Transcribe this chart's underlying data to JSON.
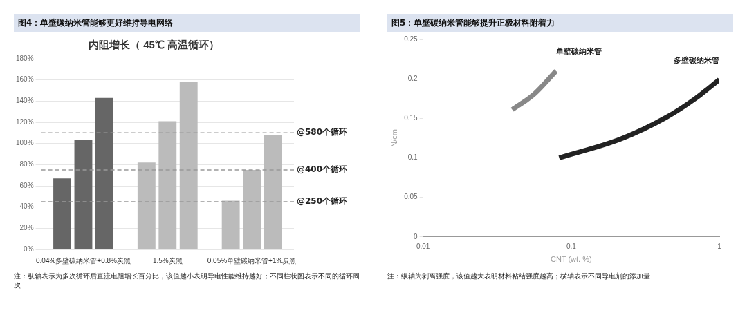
{
  "chart_data": [
    {
      "type": "bar",
      "title": "图4：单壁碳纳米管能够更好维持导电网络",
      "subtitle": "内阻增长（ 45℃ 高温循环）",
      "categories": [
        "0.04%多壁碳纳米管+0.8%炭黑",
        "1.5%炭黑",
        "0.05%单壁碳纳米管+1%炭黑"
      ],
      "series": [
        {
          "colors": [
            "#666666",
            "#bbbbbb",
            "#bbbbbb"
          ],
          "values": [
            67,
            82,
            46
          ]
        },
        {
          "colors": [
            "#666666",
            "#bbbbbb",
            "#bbbbbb"
          ],
          "values": [
            103,
            121,
            75
          ]
        },
        {
          "colors": [
            "#666666",
            "#bbbbbb",
            "#bbbbbb"
          ],
          "values": [
            143,
            158,
            108
          ]
        }
      ],
      "ylim": [
        0,
        180
      ],
      "yticks": [
        {
          "value": 0,
          "label": "0%"
        },
        {
          "value": 20,
          "label": "20%"
        },
        {
          "value": 40,
          "label": "40%"
        },
        {
          "value": 60,
          "label": "60%"
        },
        {
          "value": 80,
          "label": "80%"
        },
        {
          "value": 100,
          "label": "100%"
        },
        {
          "value": 120,
          "label": "120%"
        },
        {
          "value": 140,
          "label": "140%"
        },
        {
          "value": 160,
          "label": "160%"
        },
        {
          "value": 180,
          "label": "180%"
        }
      ],
      "grid": "y",
      "legend": false,
      "ref_lines": [
        {
          "axis": "y",
          "value": 45,
          "label": "@250个循环",
          "color": "#999999",
          "line_style": "dashed"
        },
        {
          "axis": "y",
          "value": 75,
          "label": "@400个循环",
          "color": "#999999",
          "line_style": "dashed"
        },
        {
          "axis": "y",
          "value": 110,
          "label": "@580个循环",
          "color": "#999999",
          "line_style": "dashed"
        }
      ],
      "annotations": [
        "注：纵轴表示为多次循环后直流电阻增长百分比，该值越小表明导电性能维持越好；不同柱状图表示不同的循环周次"
      ]
    },
    {
      "type": "line",
      "title": "图5：单壁碳纳米管能够提升正极材料附着力",
      "xlabel": "CNT (wt. %)",
      "ylabel": "N/cm",
      "series": [
        {
          "name": "单壁碳纳米管",
          "color": "#888888",
          "x": [
            0.04,
            0.0565,
            0.079
          ],
          "values": [
            0.161,
            0.181,
            0.21
          ]
        },
        {
          "name": "多壁碳纳米管",
          "color": "#222222",
          "x": [
            0.083,
            0.217,
            0.436,
            0.688,
            1
          ],
          "values": [
            0.1,
            0.124,
            0.151,
            0.175,
            0.199
          ]
        }
      ],
      "log": "x",
      "xlim": [
        0.01,
        1
      ],
      "xticks": [
        0.01,
        0.1,
        1
      ],
      "ylim": [
        0,
        0.25
      ],
      "yticks": [
        0,
        0.05,
        0.1,
        0.15,
        0.2,
        0.25
      ],
      "grid": false,
      "legend": false,
      "marker": "none",
      "line_style": "solid",
      "annotations": [
        "注：纵轴为剥离强度，该值越大表明材料粘结强度越高；横轴表示不同导电剂的添加量"
      ]
    }
  ]
}
